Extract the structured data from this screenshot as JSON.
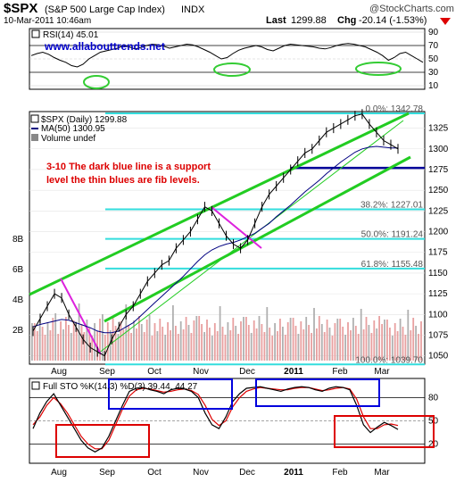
{
  "header": {
    "symbol": "$SPX",
    "name": "(S&P 500 Large Cap Index)",
    "exchange": "INDX",
    "date": "10-Mar-2011 10:46am",
    "last_label": "Last",
    "last_value": "1299.88",
    "chg_label": "Chg",
    "chg_value": "-20.14 (-1.53%)",
    "chg_icon": "down-arrow-icon",
    "brand": "@StockCharts.com"
  },
  "rsi_panel": {
    "legend": "RSI(14) 45.01",
    "url": "www.allabouttrends.net",
    "ticks": [
      "90",
      "70",
      "50",
      "30",
      "10"
    ],
    "tick_values": [
      90,
      70,
      50,
      30,
      10
    ],
    "value": 45.01,
    "highlight_color": "#33cc33",
    "series": [
      55,
      58,
      60,
      57,
      52,
      48,
      45,
      40,
      38,
      42,
      50,
      55,
      60,
      62,
      64,
      66,
      70,
      68,
      65,
      67,
      70,
      72,
      71,
      69,
      66,
      68,
      70,
      72,
      71,
      68,
      64,
      60,
      55,
      50,
      52,
      58,
      63,
      66,
      68,
      70,
      68,
      64,
      62,
      66,
      70,
      72,
      71,
      70,
      69,
      68,
      66,
      65,
      67,
      70,
      72,
      73,
      72,
      70,
      68,
      64,
      60,
      55,
      48,
      52,
      58,
      60,
      55,
      50,
      45
    ]
  },
  "price_panel": {
    "legend_symbol": "$SPX (Daily) 1299.88",
    "legend_ma": "MA(50) 1300.95",
    "legend_volume": "Volume undef",
    "annotation_line1": "3-10 The dark blue line is a support",
    "annotation_line2": "level the thin blues are fib levels.",
    "annotation_color": "#dd0000",
    "price_ticks": [
      "1325",
      "1300",
      "1275",
      "1250",
      "1225",
      "1200",
      "1175",
      "1150",
      "1125",
      "1100",
      "1075",
      "1050"
    ],
    "volume_ticks": [
      "8B",
      "6B",
      "4B",
      "2B"
    ],
    "fib_levels": [
      {
        "pct": "0.0%",
        "value": 1342.78,
        "label": "0.0%: 1342.78"
      },
      {
        "pct": "38.2%",
        "value": 1227.01,
        "label": "38.2%: 1227.01"
      },
      {
        "pct": "50.0%",
        "value": 1191.24,
        "label": "50.0%: 1191.24"
      },
      {
        "pct": "61.8%",
        "value": 1155.48,
        "label": "61.8%: 1155.48"
      },
      {
        "pct": "100.0%",
        "value": 1039.7,
        "label": "100.0%: 1039.70"
      }
    ],
    "support_level": 1277,
    "colors": {
      "fib": "#33dddd",
      "support": "#000099",
      "channel": "#22cc22",
      "downtrend": "#dd22dd",
      "ma": "#000080",
      "price": "#000000",
      "volume": "#e8a0a0"
    }
  },
  "sto_panel": {
    "legend": "Full STO %K(14,3) %D(3) 39.44, 44.27",
    "ticks": [
      "80",
      "50",
      "20"
    ],
    "tick_values": [
      80,
      50,
      20
    ],
    "k_value": 39.44,
    "d_value": 44.27,
    "box_colors": {
      "overbought": "#0000dd",
      "oversold": "#dd0000"
    }
  },
  "x_axis": {
    "labels": [
      "Aug",
      "Sep",
      "Oct",
      "Nov",
      "Dec",
      "2011",
      "Feb",
      "Mar"
    ]
  },
  "chart_data": {
    "type": "line",
    "title": "$SPX (S&P 500 Large Cap Index) INDX",
    "x_range": [
      "Jul 2010",
      "Mar 2011"
    ],
    "ylim": [
      1040,
      1345
    ],
    "ma50": 1300.95,
    "series": [
      {
        "name": "$SPX (Daily)",
        "values": [
          1080,
          1095,
          1110,
          1125,
          1120,
          1100,
          1085,
          1070,
          1060,
          1055,
          1050,
          1070,
          1085,
          1100,
          1110,
          1125,
          1140,
          1150,
          1160,
          1165,
          1180,
          1190,
          1200,
          1215,
          1230,
          1225,
          1210,
          1195,
          1185,
          1180,
          1190,
          1210,
          1230,
          1245,
          1255,
          1265,
          1275,
          1285,
          1295,
          1300,
          1310,
          1320,
          1325,
          1330,
          1335,
          1340,
          1342,
          1330,
          1320,
          1310,
          1305,
          1300
        ]
      },
      {
        "name": "MA(50)",
        "values": [
          1085,
          1088,
          1090,
          1092,
          1094,
          1093,
          1090,
          1087,
          1084,
          1080,
          1078,
          1078,
          1080,
          1085,
          1090,
          1098,
          1106,
          1114,
          1122,
          1130,
          1138,
          1146,
          1155,
          1164,
          1172,
          1178,
          1182,
          1185,
          1187,
          1190,
          1194,
          1198,
          1204,
          1210,
          1218,
          1225,
          1232,
          1240,
          1248,
          1255,
          1262,
          1270,
          1277,
          1284,
          1290,
          1296,
          1300,
          1302,
          1303,
          1302,
          1301,
          1301
        ]
      }
    ],
    "stochastic": [
      {
        "name": "%K",
        "values": [
          40,
          60,
          75,
          85,
          70,
          55,
          40,
          25,
          15,
          10,
          15,
          30,
          50,
          70,
          88,
          92,
          93,
          90,
          88,
          85,
          90,
          92,
          91,
          88,
          80,
          60,
          45,
          40,
          55,
          75,
          85,
          92,
          93,
          94,
          92,
          90,
          88,
          91,
          93,
          94,
          93,
          90,
          88,
          92,
          94,
          93,
          90,
          70,
          45,
          35,
          42,
          48,
          44,
          39
        ]
      },
      {
        "name": "%D",
        "values": [
          45,
          55,
          70,
          80,
          72,
          60,
          45,
          30,
          20,
          14,
          14,
          25,
          45,
          65,
          82,
          90,
          92,
          91,
          89,
          87,
          88,
          90,
          91,
          89,
          84,
          70,
          52,
          44,
          50,
          68,
          80,
          88,
          91,
          93,
          92,
          91,
          90,
          90,
          92,
          93,
          93,
          91,
          89,
          90,
          92,
          93,
          91,
          78,
          55,
          40,
          40,
          45,
          46,
          44
        ]
      }
    ],
    "rsi": [
      55,
      58,
      60,
      57,
      52,
      48,
      45,
      40,
      38,
      42,
      50,
      55,
      60,
      62,
      64,
      66,
      70,
      68,
      65,
      67,
      70,
      72,
      71,
      69,
      66,
      68,
      70,
      72,
      71,
      68,
      64,
      60,
      55,
      50,
      52,
      58,
      63,
      66,
      68,
      70,
      68,
      64,
      62,
      66,
      70,
      72,
      71,
      70,
      69,
      68,
      66,
      65,
      67,
      70,
      72,
      73,
      72,
      70,
      68,
      64,
      60,
      55,
      48,
      52,
      58,
      60,
      55,
      50,
      45
    ]
  }
}
